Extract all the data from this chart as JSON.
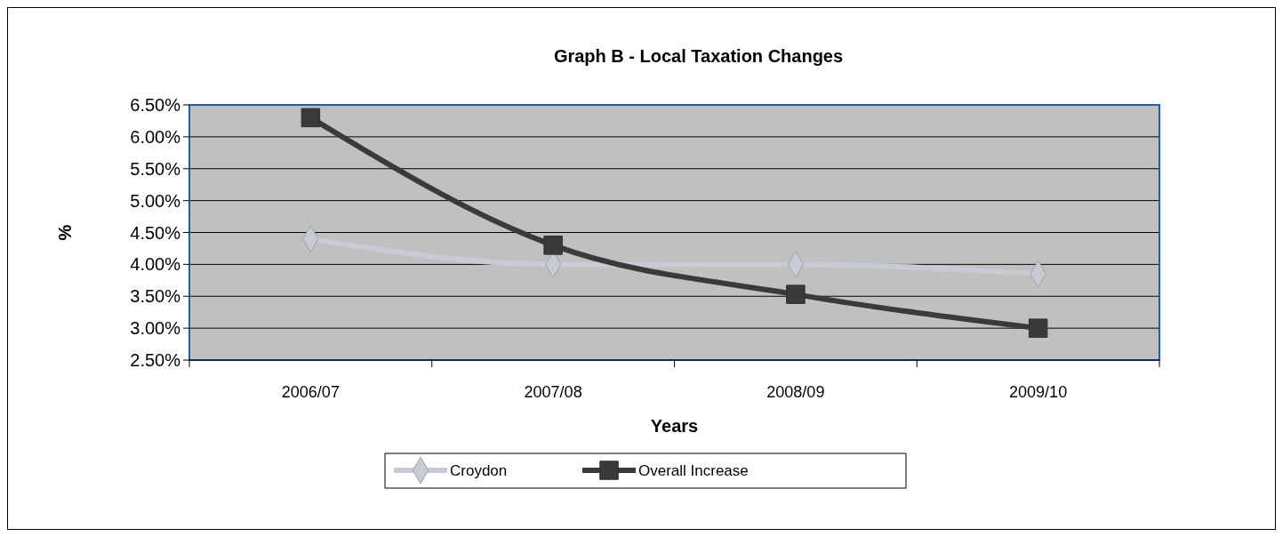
{
  "chart_data": {
    "type": "line",
    "title": "Graph B - Local Taxation Changes",
    "xlabel": "Years",
    "ylabel": "%",
    "categories": [
      "2006/07",
      "2007/08",
      "2008/09",
      "2009/10"
    ],
    "series": [
      {
        "name": "Croydon",
        "color": "#c8cad4",
        "marker": "diamond",
        "values": [
          4.4,
          4.0,
          4.0,
          3.85
        ]
      },
      {
        "name": "Overall Increase",
        "color": "#3a3a3a",
        "marker": "square",
        "values": [
          6.3,
          4.3,
          3.53,
          3.0
        ]
      }
    ],
    "ylim": [
      2.5,
      6.5
    ],
    "yticks": [
      {
        "value": 2.5,
        "label": "2.50%"
      },
      {
        "value": 3,
        "label": "3.00%"
      },
      {
        "value": 3.5,
        "label": "3.50%"
      },
      {
        "value": 4,
        "label": "4.00%"
      },
      {
        "value": 4.5,
        "label": "4.50%"
      },
      {
        "value": 5,
        "label": "5.00%"
      },
      {
        "value": 5.5,
        "label": "5.50%"
      },
      {
        "value": 6,
        "label": "6.00%"
      },
      {
        "value": 6.5,
        "label": "6.50%"
      }
    ],
    "grid": "y",
    "legend": "bottom"
  }
}
